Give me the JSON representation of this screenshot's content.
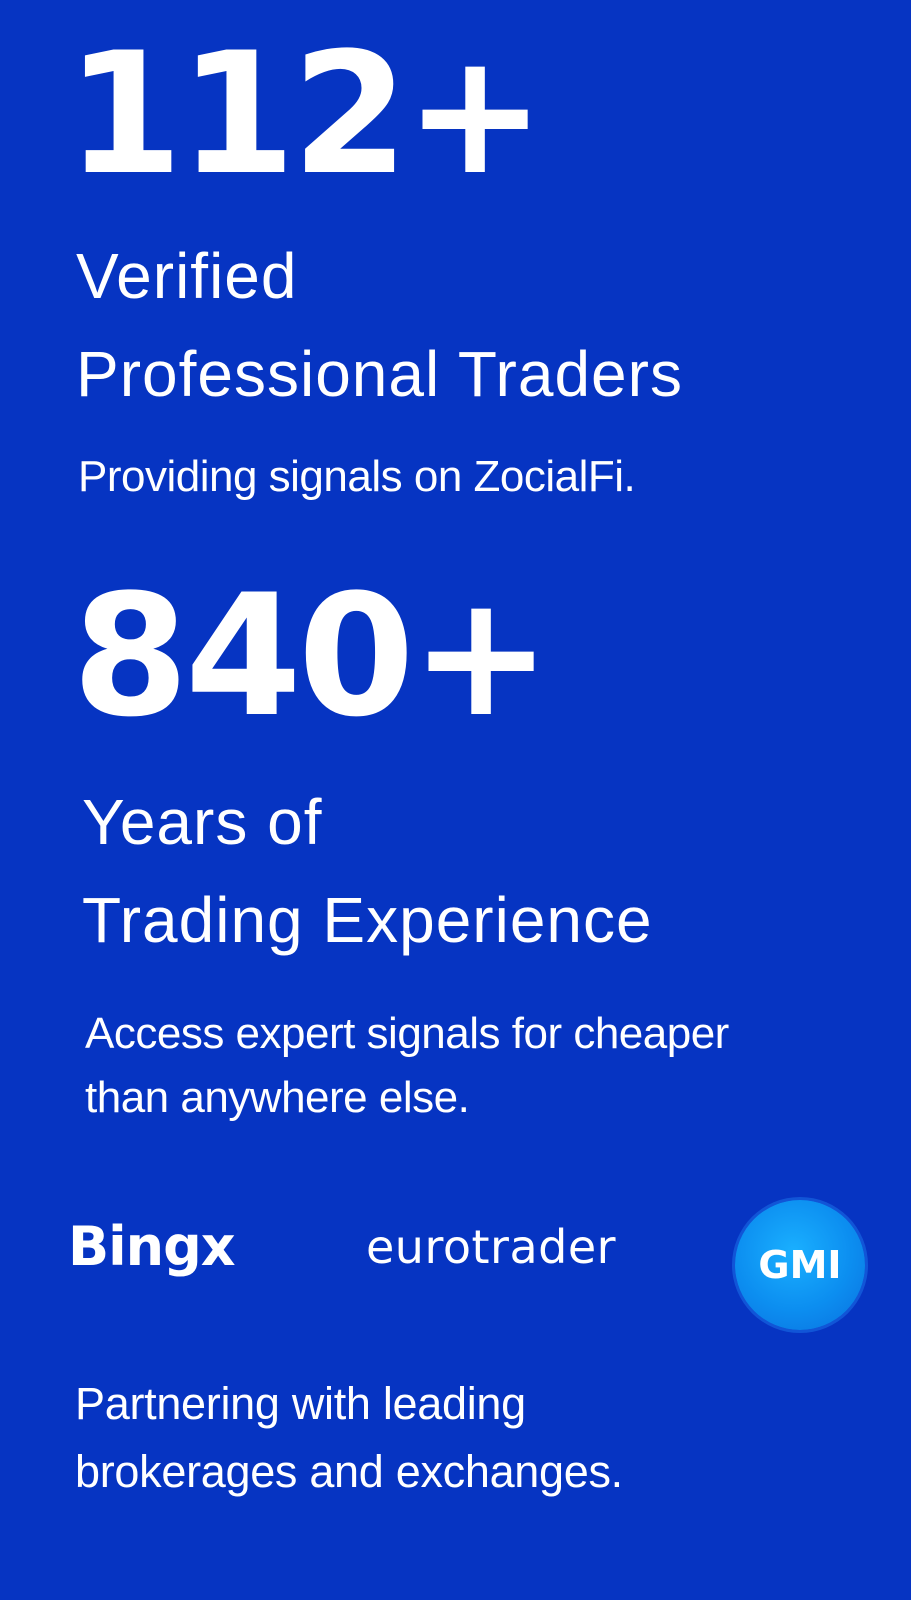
{
  "stats": [
    {
      "number": "112+",
      "title_lines": [
        "Verified",
        "Professional Traders"
      ],
      "description_lines": [
        "Providing signals on ZocialFi."
      ]
    },
    {
      "number": "840+",
      "title_lines": [
        "Years of",
        "Trading Experience"
      ],
      "description_lines": [
        "Access expert signals for cheaper",
        "than anywhere else."
      ]
    }
  ],
  "partners": {
    "logos": [
      "Bingx",
      "eurotrader",
      "GMI"
    ],
    "description_lines": [
      "Partnering with leading",
      "brokerages and exchanges."
    ]
  },
  "colors": {
    "background": "#0634c2",
    "text": "#ffffff",
    "gmi_badge": "#0c8ef0"
  }
}
